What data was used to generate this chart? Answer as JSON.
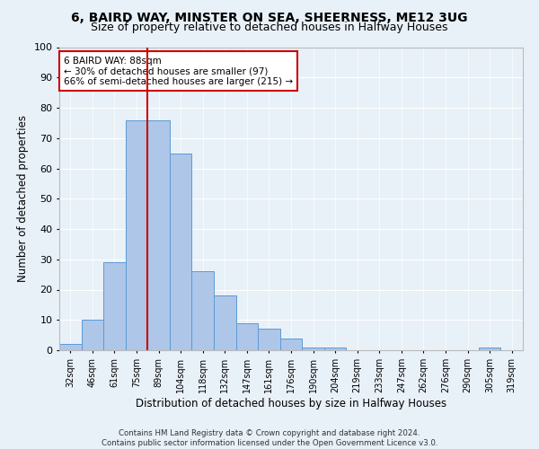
{
  "title1": "6, BAIRD WAY, MINSTER ON SEA, SHEERNESS, ME12 3UG",
  "title2": "Size of property relative to detached houses in Halfway Houses",
  "xlabel": "Distribution of detached houses by size in Halfway Houses",
  "ylabel": "Number of detached properties",
  "footer1": "Contains HM Land Registry data © Crown copyright and database right 2024.",
  "footer2": "Contains public sector information licensed under the Open Government Licence v3.0.",
  "bar_labels": [
    "32sqm",
    "46sqm",
    "61sqm",
    "75sqm",
    "89sqm",
    "104sqm",
    "118sqm",
    "132sqm",
    "147sqm",
    "161sqm",
    "176sqm",
    "190sqm",
    "204sqm",
    "219sqm",
    "233sqm",
    "247sqm",
    "262sqm",
    "276sqm",
    "290sqm",
    "305sqm",
    "319sqm"
  ],
  "bar_values": [
    2,
    10,
    29,
    76,
    76,
    65,
    26,
    18,
    9,
    7,
    4,
    1,
    1,
    0,
    0,
    0,
    0,
    0,
    0,
    1,
    0
  ],
  "bar_color": "#aec6e8",
  "bar_edge_color": "#5b9bd5",
  "ylim": [
    0,
    100
  ],
  "yticks": [
    0,
    10,
    20,
    30,
    40,
    50,
    60,
    70,
    80,
    90,
    100
  ],
  "vline_x": 3.5,
  "vline_color": "#cc0000",
  "annotation_text": "6 BAIRD WAY: 88sqm\n← 30% of detached houses are smaller (97)\n66% of semi-detached houses are larger (215) →",
  "annotation_box_color": "#ffffff",
  "annotation_box_edge": "#cc0000",
  "bg_color": "#e8f0f8",
  "plot_bg_color": "#e8f0f8",
  "grid_color": "#ffffff",
  "title1_fontsize": 10,
  "title2_fontsize": 9,
  "xlabel_fontsize": 8.5,
  "ylabel_fontsize": 8.5
}
